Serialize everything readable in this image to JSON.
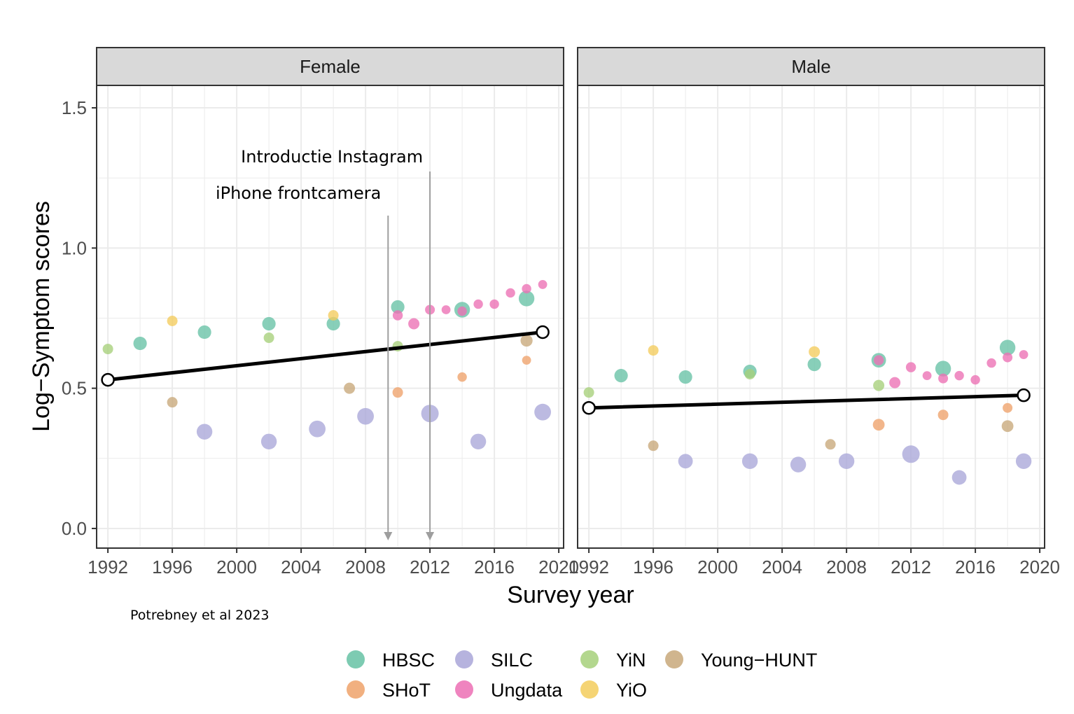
{
  "chart_data": {
    "type": "scatter",
    "facet_by": "sex",
    "xlabel": "Survey year",
    "ylabel": "Log−Symptom scores",
    "xlim": [
      1991.3,
      2020.3
    ],
    "ylim": [
      -0.07,
      1.58
    ],
    "x_ticks": [
      "1992",
      "1996",
      "2000",
      "2004",
      "2008",
      "2012",
      "2016",
      "2020"
    ],
    "y_ticks": [
      {
        "value": 0.0,
        "label": "0.0"
      },
      {
        "value": 0.5,
        "label": "0.5"
      },
      {
        "value": 1.0,
        "label": "1.0"
      },
      {
        "value": 1.5,
        "label": "1.5"
      }
    ],
    "legend": {
      "position": "bottom",
      "entries": [
        {
          "name": "HBSC",
          "color": "#66c2a5"
        },
        {
          "name": "SILC",
          "color": "#a9a6d8"
        },
        {
          "name": "YiN",
          "color": "#a6d07a"
        },
        {
          "name": "Young−HUNT",
          "color": "#c8a87a"
        },
        {
          "name": "SHoT",
          "color": "#eea26a"
        },
        {
          "name": "Ungdata",
          "color": "#ec6fb4"
        },
        {
          "name": "YiO",
          "color": "#f3cc5c"
        }
      ]
    },
    "panels": [
      {
        "name": "Female",
        "trend": {
          "x": [
            1992,
            2019
          ],
          "y": [
            0.53,
            0.7
          ]
        },
        "series": [
          {
            "name": "HBSC",
            "points": [
              [
                1994,
                0.66,
                2
              ],
              [
                1998,
                0.7,
                2
              ],
              [
                2002,
                0.73,
                2
              ],
              [
                2006,
                0.73,
                2
              ],
              [
                2010,
                0.79,
                2
              ],
              [
                2014,
                0.78,
                3
              ],
              [
                2018,
                0.82,
                3
              ]
            ]
          },
          {
            "name": "SILC",
            "points": [
              [
                1998,
                0.345,
                3
              ],
              [
                2002,
                0.31,
                3
              ],
              [
                2005,
                0.355,
                3.5
              ],
              [
                2008,
                0.4,
                3.5
              ],
              [
                2012,
                0.41,
                4
              ],
              [
                2015,
                0.31,
                3
              ],
              [
                2019,
                0.415,
                3.5
              ]
            ]
          },
          {
            "name": "YiN",
            "points": [
              [
                1992,
                0.64,
                1
              ],
              [
                2002,
                0.68,
                1
              ],
              [
                2010,
                0.65,
                1
              ]
            ]
          },
          {
            "name": "Young−HUNT",
            "points": [
              [
                1996,
                0.45,
                1
              ],
              [
                2007,
                0.5,
                1.2
              ],
              [
                2018,
                0.67,
                1.5
              ]
            ]
          },
          {
            "name": "SHoT",
            "points": [
              [
                2010,
                0.485,
                1
              ],
              [
                2014,
                0.54,
                0.7
              ],
              [
                2018,
                0.6,
                0.6
              ]
            ]
          },
          {
            "name": "Ungdata",
            "points": [
              [
                2010,
                0.76,
                0.9
              ],
              [
                2011,
                0.73,
                1.2
              ],
              [
                2012,
                0.78,
                0.8
              ],
              [
                2013,
                0.78,
                0.6
              ],
              [
                2014,
                0.775,
                0.7
              ],
              [
                2015,
                0.8,
                0.7
              ],
              [
                2016,
                0.8,
                0.7
              ],
              [
                2017,
                0.84,
                0.7
              ],
              [
                2018,
                0.855,
                0.7
              ],
              [
                2019,
                0.87,
                0.6
              ]
            ]
          },
          {
            "name": "YiO",
            "points": [
              [
                1996,
                0.74,
                1
              ],
              [
                2006,
                0.76,
                1
              ]
            ]
          }
        ]
      },
      {
        "name": "Male",
        "trend": {
          "x": [
            1992,
            2019
          ],
          "y": [
            0.43,
            0.475
          ]
        },
        "series": [
          {
            "name": "HBSC",
            "points": [
              [
                1994,
                0.545,
                2
              ],
              [
                1998,
                0.54,
                2
              ],
              [
                2002,
                0.56,
                2
              ],
              [
                2006,
                0.585,
                2
              ],
              [
                2010,
                0.6,
                2.5
              ],
              [
                2014,
                0.57,
                3
              ],
              [
                2018,
                0.645,
                3
              ]
            ]
          },
          {
            "name": "SILC",
            "points": [
              [
                1998,
                0.24,
                2.5
              ],
              [
                2002,
                0.24,
                3
              ],
              [
                2005,
                0.228,
                3
              ],
              [
                2008,
                0.24,
                3
              ],
              [
                2012,
                0.265,
                4
              ],
              [
                2015,
                0.182,
                2.5
              ],
              [
                2019,
                0.24,
                3
              ]
            ]
          },
          {
            "name": "YiN",
            "points": [
              [
                1992,
                0.485,
                1
              ],
              [
                2002,
                0.55,
                1
              ],
              [
                2010,
                0.51,
                1.2
              ]
            ]
          },
          {
            "name": "Young−HUNT",
            "points": [
              [
                1996,
                0.295,
                1
              ],
              [
                2007,
                0.3,
                1
              ],
              [
                2018,
                0.365,
                1.4
              ]
            ]
          },
          {
            "name": "SHoT",
            "points": [
              [
                2010,
                0.37,
                1.4
              ],
              [
                2014,
                0.405,
                1
              ],
              [
                2018,
                0.43,
                0.8
              ]
            ]
          },
          {
            "name": "Ungdata",
            "points": [
              [
                2010,
                0.6,
                0.9
              ],
              [
                2011,
                0.52,
                1.2
              ],
              [
                2012,
                0.575,
                0.9
              ],
              [
                2013,
                0.545,
                0.6
              ],
              [
                2014,
                0.535,
                0.8
              ],
              [
                2015,
                0.545,
                0.7
              ],
              [
                2016,
                0.53,
                0.7
              ],
              [
                2017,
                0.59,
                0.7
              ],
              [
                2018,
                0.61,
                0.8
              ],
              [
                2019,
                0.62,
                0.6
              ]
            ]
          },
          {
            "name": "YiO",
            "points": [
              [
                1996,
                0.635,
                1
              ],
              [
                2006,
                0.63,
                1.2
              ]
            ]
          }
        ]
      }
    ],
    "annotations": [
      {
        "text": "Introductie Instagram",
        "x": 2012,
        "panel": "Female"
      },
      {
        "text": "iPhone frontcamera",
        "x": 2009.4,
        "panel": "Female"
      }
    ],
    "source": "Potrebney et al 2023"
  },
  "colors": {
    "trend": "#000000",
    "strip_fill": "#d9d9d9",
    "grid": "#ebebeb",
    "frame": "#333333",
    "annotation_line": "#9e9e9e"
  }
}
